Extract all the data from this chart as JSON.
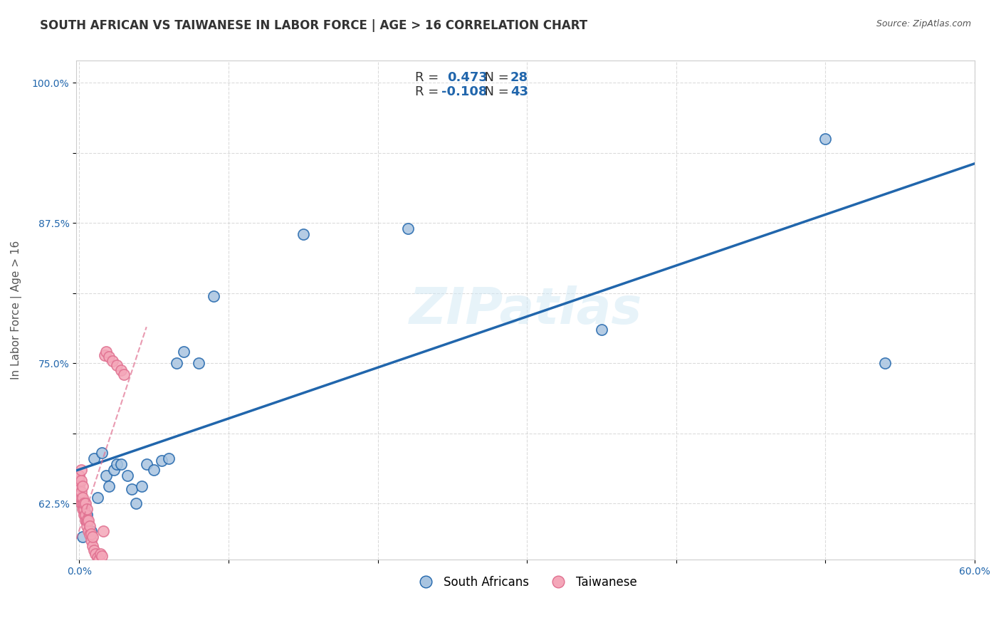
{
  "title": "SOUTH AFRICAN VS TAIWANESE IN LABOR FORCE | AGE > 16 CORRELATION CHART",
  "source": "Source: ZipAtlas.com",
  "xlabel": "",
  "ylabel": "In Labor Force | Age > 16",
  "xlim": [
    -0.002,
    0.6
  ],
  "ylim": [
    0.575,
    1.02
  ],
  "xticks": [
    0.0,
    0.1,
    0.2,
    0.3,
    0.4,
    0.5,
    0.6
  ],
  "xticklabels": [
    "0.0%",
    "",
    "",
    "",
    "",
    "",
    "60.0%"
  ],
  "ytick_positions": [
    0.625,
    0.6875,
    0.75,
    0.8125,
    0.875,
    0.9375,
    1.0
  ],
  "ytick_labels": [
    "62.5%",
    "",
    "75.0%",
    "",
    "87.5%",
    "",
    "100.0%"
  ],
  "blue_R": 0.473,
  "blue_N": 28,
  "pink_R": -0.108,
  "pink_N": 43,
  "blue_color": "#a8c4e0",
  "pink_color": "#f4a7b9",
  "blue_line_color": "#2166ac",
  "pink_line_color": "#f4a7b9",
  "watermark": "ZIPatlas",
  "blue_scatter_x": [
    0.002,
    0.005,
    0.008,
    0.01,
    0.012,
    0.015,
    0.018,
    0.02,
    0.023,
    0.025,
    0.028,
    0.032,
    0.035,
    0.038,
    0.042,
    0.045,
    0.05,
    0.055,
    0.06,
    0.065,
    0.07,
    0.08,
    0.09,
    0.15,
    0.22,
    0.35,
    0.5,
    0.54
  ],
  "blue_scatter_y": [
    0.595,
    0.615,
    0.6,
    0.665,
    0.63,
    0.67,
    0.65,
    0.64,
    0.655,
    0.66,
    0.66,
    0.65,
    0.638,
    0.625,
    0.64,
    0.66,
    0.655,
    0.663,
    0.665,
    0.75,
    0.76,
    0.75,
    0.81,
    0.865,
    0.87,
    0.78,
    0.95,
    0.75
  ],
  "pink_scatter_x": [
    0.0,
    0.0,
    0.0,
    0.001,
    0.001,
    0.001,
    0.001,
    0.001,
    0.002,
    0.002,
    0.002,
    0.002,
    0.003,
    0.003,
    0.003,
    0.004,
    0.004,
    0.004,
    0.005,
    0.005,
    0.005,
    0.006,
    0.006,
    0.007,
    0.007,
    0.008,
    0.008,
    0.009,
    0.009,
    0.01,
    0.011,
    0.012,
    0.013,
    0.014,
    0.015,
    0.016,
    0.017,
    0.018,
    0.02,
    0.022,
    0.025,
    0.028,
    0.03
  ],
  "pink_scatter_y": [
    0.64,
    0.645,
    0.65,
    0.625,
    0.63,
    0.635,
    0.645,
    0.655,
    0.62,
    0.625,
    0.63,
    0.64,
    0.615,
    0.62,
    0.625,
    0.61,
    0.615,
    0.625,
    0.605,
    0.61,
    0.62,
    0.6,
    0.61,
    0.597,
    0.605,
    0.592,
    0.598,
    0.587,
    0.595,
    0.583,
    0.58,
    0.577,
    0.575,
    0.58,
    0.578,
    0.6,
    0.757,
    0.76,
    0.756,
    0.752,
    0.748,
    0.744,
    0.74
  ],
  "grid_color": "#cccccc",
  "background_color": "#ffffff",
  "title_fontsize": 12,
  "axis_label_fontsize": 11,
  "tick_fontsize": 10,
  "legend_fontsize": 12
}
